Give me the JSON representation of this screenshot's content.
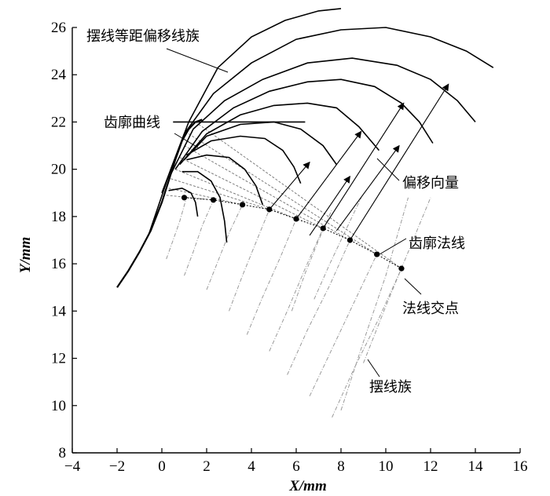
{
  "chart_data": {
    "type": "line",
    "xlabel": "X/mm",
    "ylabel": "Y/mm",
    "xlim": [
      -4,
      16
    ],
    "ylim": [
      8,
      26
    ],
    "x_ticks": [
      -4,
      -2,
      0,
      2,
      4,
      6,
      8,
      10,
      12,
      14,
      16
    ],
    "y_ticks": [
      8,
      10,
      12,
      14,
      16,
      18,
      20,
      22,
      24,
      26
    ],
    "annotations": [
      {
        "key": "offset",
        "text": "摆线等距偏移线族"
      },
      {
        "key": "profile",
        "text": "齿廓曲线"
      },
      {
        "key": "vector",
        "text": "偏移向量"
      },
      {
        "key": "normal",
        "text": "齿廓法线"
      },
      {
        "key": "intersect",
        "text": "法线交点"
      },
      {
        "key": "family",
        "text": "摆线族"
      }
    ],
    "intersection_points": {
      "x": [
        1.0,
        2.3,
        3.6,
        4.8,
        6.0,
        7.2,
        8.4,
        9.6,
        10.7
      ],
      "y": [
        18.8,
        18.7,
        18.5,
        18.3,
        17.9,
        17.5,
        17.0,
        16.4,
        15.8
      ]
    },
    "tangent_line": {
      "x": [
        0.5,
        6.4
      ],
      "y": [
        22.0,
        22.0
      ]
    },
    "profile_curve": {
      "x": [
        -2.0,
        -1.5,
        -1.0,
        -0.5,
        0.0,
        0.3,
        0.6,
        0.9,
        1.2,
        1.5,
        1.8
      ],
      "y": [
        15.0,
        15.7,
        16.5,
        17.4,
        18.6,
        19.5,
        20.4,
        21.2,
        21.7,
        22.0,
        22.1
      ]
    },
    "offset_family": [
      {
        "x": [
          -0.6,
          0.4,
          1.2,
          2.5,
          4.0,
          5.5,
          7.0,
          8.0
        ],
        "y": [
          17.2,
          20.0,
          22.0,
          24.3,
          25.6,
          26.3,
          26.7,
          26.8
        ]
      },
      {
        "x": [
          0.0,
          1.0,
          2.3,
          4.0,
          6.0,
          8.0,
          10.0,
          12.0,
          13.6,
          14.8
        ],
        "y": [
          19.0,
          21.5,
          23.2,
          24.5,
          25.5,
          25.9,
          26.0,
          25.6,
          25.0,
          24.3
        ]
      },
      {
        "x": [
          0.3,
          1.4,
          2.8,
          4.5,
          6.5,
          8.5,
          10.5,
          12.0,
          13.2,
          14.0
        ],
        "y": [
          19.6,
          21.7,
          22.9,
          23.8,
          24.5,
          24.7,
          24.4,
          23.8,
          22.9,
          22.0
        ]
      },
      {
        "x": [
          0.6,
          1.8,
          3.2,
          4.8,
          6.5,
          8.0,
          9.5,
          10.7,
          11.5,
          12.1
        ],
        "y": [
          20.0,
          21.6,
          22.6,
          23.3,
          23.7,
          23.8,
          23.5,
          22.8,
          22.0,
          21.1
        ]
      },
      {
        "x": [
          0.8,
          2.0,
          3.5,
          5.0,
          6.5,
          7.8,
          8.8,
          9.7
        ],
        "y": [
          20.2,
          21.5,
          22.3,
          22.7,
          22.8,
          22.6,
          21.8,
          20.8
        ]
      },
      {
        "x": [
          1.0,
          2.0,
          3.5,
          5.0,
          6.2,
          7.2,
          7.8
        ],
        "y": [
          20.4,
          21.4,
          21.9,
          22.0,
          21.7,
          21.0,
          20.2
        ]
      },
      {
        "x": [
          1.1,
          2.2,
          3.5,
          4.6,
          5.4,
          5.9,
          6.2
        ],
        "y": [
          20.6,
          21.2,
          21.4,
          21.3,
          20.8,
          20.1,
          19.4
        ]
      },
      {
        "x": [
          1.1,
          2.0,
          3.0,
          3.7,
          4.2,
          4.5
        ],
        "y": [
          20.4,
          20.6,
          20.5,
          20.0,
          19.3,
          18.5
        ]
      },
      {
        "x": [
          0.9,
          1.6,
          2.2,
          2.6,
          2.8,
          2.9
        ],
        "y": [
          19.9,
          19.9,
          19.5,
          18.8,
          17.8,
          16.9
        ]
      },
      {
        "x": [
          0.3,
          0.9,
          1.3,
          1.5,
          1.6
        ],
        "y": [
          19.1,
          19.2,
          19.0,
          18.6,
          18.0
        ]
      }
    ],
    "offset_vectors": [
      {
        "from": [
          4.8,
          18.3
        ],
        "to": [
          6.6,
          20.3
        ]
      },
      {
        "from": [
          6.0,
          17.9
        ],
        "to": [
          8.9,
          21.6
        ]
      },
      {
        "from": [
          7.2,
          17.5
        ],
        "to": [
          10.8,
          22.8
        ]
      },
      {
        "from": [
          8.4,
          17.0
        ],
        "to": [
          12.8,
          23.6
        ]
      },
      {
        "from": [
          6.6,
          17.2
        ],
        "to": [
          8.4,
          19.7
        ]
      },
      {
        "from": [
          7.8,
          17.4
        ],
        "to": [
          10.6,
          21.0
        ]
      }
    ],
    "cycloid_family": [
      {
        "x": [
          0.2,
          0.5,
          0.8,
          1.1
        ],
        "y": [
          16.2,
          17.0,
          17.8,
          18.8
        ]
      },
      {
        "x": [
          1.0,
          1.4,
          1.8,
          2.3
        ],
        "y": [
          15.5,
          16.5,
          17.6,
          18.7
        ]
      },
      {
        "x": [
          2.0,
          2.5,
          3.0,
          3.6
        ],
        "y": [
          14.9,
          16.1,
          17.3,
          18.5
        ]
      },
      {
        "x": [
          3.0,
          3.6,
          4.2,
          4.8
        ],
        "y": [
          14.0,
          15.5,
          16.9,
          18.3
        ]
      },
      {
        "x": [
          3.8,
          4.5,
          5.3,
          6.0
        ],
        "y": [
          13.0,
          14.6,
          16.3,
          17.9
        ]
      },
      {
        "x": [
          4.8,
          5.6,
          6.4,
          7.2
        ],
        "y": [
          12.3,
          14.0,
          15.8,
          17.5
        ]
      },
      {
        "x": [
          5.6,
          6.5,
          7.5,
          8.4
        ],
        "y": [
          11.3,
          13.2,
          15.1,
          17.0
        ]
      },
      {
        "x": [
          6.6,
          7.6,
          8.6,
          9.6
        ],
        "y": [
          10.4,
          12.4,
          14.4,
          16.4
        ]
      },
      {
        "x": [
          7.6,
          8.6,
          9.7,
          10.7
        ],
        "y": [
          9.5,
          11.6,
          13.7,
          15.8
        ]
      },
      {
        "x": [
          8.0,
          9.0,
          10.0,
          11.0
        ],
        "y": [
          9.8,
          12.7,
          15.5,
          18.8
        ]
      },
      {
        "x": [
          9.0,
          10.0,
          11.0,
          12.0
        ],
        "y": [
          11.8,
          14.2,
          16.5,
          18.8
        ]
      },
      {
        "x": [
          6.8,
          7.5,
          8.2,
          8.9
        ],
        "y": [
          14.5,
          16.0,
          17.4,
          18.8
        ]
      },
      {
        "x": [
          5.8,
          6.4,
          7.0,
          7.6
        ],
        "y": [
          14.0,
          15.6,
          17.0,
          18.3
        ]
      }
    ],
    "normal_rays": [
      {
        "from": [
          1.5,
          22.0
        ],
        "to": [
          10.7,
          15.8
        ]
      },
      {
        "from": [
          1.2,
          21.5
        ],
        "to": [
          9.6,
          16.4
        ]
      },
      {
        "from": [
          1.0,
          21.0
        ],
        "to": [
          8.4,
          17.0
        ]
      },
      {
        "from": [
          0.8,
          20.5
        ],
        "to": [
          7.2,
          17.5
        ]
      },
      {
        "from": [
          0.6,
          20.0
        ],
        "to": [
          6.0,
          17.9
        ]
      },
      {
        "from": [
          0.4,
          19.6
        ],
        "to": [
          4.8,
          18.3
        ]
      },
      {
        "from": [
          0.3,
          19.2
        ],
        "to": [
          3.6,
          18.5
        ]
      },
      {
        "from": [
          0.2,
          18.9
        ],
        "to": [
          2.3,
          18.7
        ]
      }
    ],
    "colors": {
      "ink": "#000000",
      "grey_line": "#6f6f6f",
      "light_line": "#9a9a9a"
    }
  }
}
